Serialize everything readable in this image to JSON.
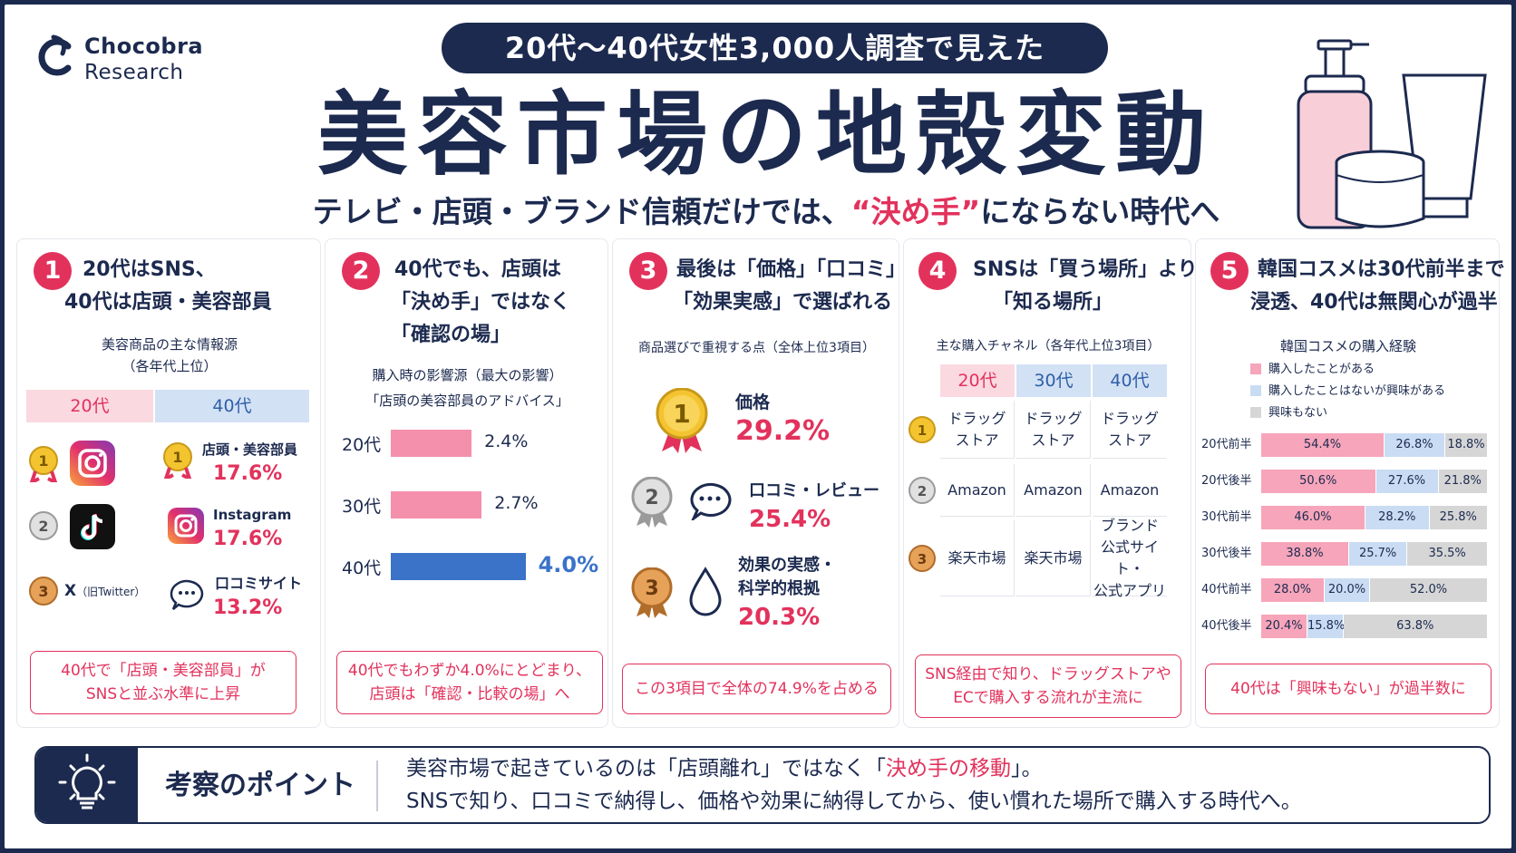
{
  "header": {
    "brand": "Chocobra",
    "brand_sub": "Research",
    "banner": "20代〜40代女性3,000人調査で見えた",
    "title": "美容市場の地殻変動",
    "subtitle_a": "テレビ・店頭・ブランド信頼だけでは、",
    "subtitle_b": "“決め手”",
    "subtitle_c": "にならない時代へ"
  },
  "colors": {
    "navy": "#1c2a4f",
    "pink": "#e2325c",
    "bar_pink": "#f490ac",
    "bar_blue": "#3a73c8",
    "seg_pink": "#f6a5ba",
    "seg_blue": "#c9dcf3",
    "seg_gray": "#d6d6d6"
  },
  "panel1": {
    "num": "1",
    "title_l1": "20代はSNS、",
    "title_l2": "40代は店頭・美容部員",
    "caption_l1": "美容商品の主な情報源",
    "caption_l2": "（各年代上位）",
    "col1": "20代",
    "col2": "40代",
    "rank_20": [
      {
        "rank": "1",
        "icon": "instagram-icon"
      },
      {
        "rank": "2",
        "icon": "tiktok-icon"
      },
      {
        "rank": "3",
        "label": "X",
        "label_sub": "（旧Twitter）"
      }
    ],
    "rank_40": [
      {
        "rank": "1",
        "label": "店頭・美容部員",
        "value": "17.6%"
      },
      {
        "rank": "2",
        "label": "Instagram",
        "value": "17.6%"
      },
      {
        "rank": "3",
        "label": "口コミサイト",
        "value": "13.2%"
      }
    ],
    "footer_l1": "40代で「店頭・美容部員」が",
    "footer_l2": "SNSと並ぶ水準に上昇"
  },
  "panel2": {
    "num": "2",
    "title_l1": "40代でも、店頭は",
    "title_l2": "「決め手」ではなく",
    "title_l3": "「確認の場」",
    "caption_l1": "購入時の影響源（最大の影響）",
    "caption_l2": "「店頭の美容部員のアドバイス」",
    "footer_l1": "40代でもわずか4.0%にとどまり、",
    "footer_l2": "店頭は「確認・比較の場」へ"
  },
  "panel3": {
    "num": "3",
    "title_l1": "最後は「価格」「口コミ」",
    "title_l2": "「効果実感」で選ばれる",
    "caption": "商品選びで重視する点（全体上位3項目）",
    "items": [
      {
        "rank": "1",
        "label": "価格",
        "value": "29.2%"
      },
      {
        "rank": "2",
        "label": "口コミ・レビュー",
        "value": "25.4%"
      },
      {
        "rank": "3",
        "label_l1": "効果の実感・",
        "label_l2": "科学的根拠",
        "value": "20.3%"
      }
    ],
    "footer": "この3項目で全体の74.9%を占める"
  },
  "panel4": {
    "num": "4",
    "title_l1": "SNSは「買う場所」より",
    "title_l2": "「知る場所」",
    "caption": "主な購入チャネル（各年代上位3項目）",
    "cols": [
      "20代",
      "30代",
      "40代"
    ],
    "r1": [
      "ドラッグ\nストア",
      "ドラッグ\nストア",
      "ドラッグ\nストア"
    ],
    "r2": [
      "Amazon",
      "Amazon",
      "Amazon"
    ],
    "r3": [
      "楽天市場",
      "楽天市場",
      "ブランド\n公式サイト・\n公式アプリ"
    ],
    "footer_l1": "SNS経由で知り、ドラッグストアや",
    "footer_l2": "ECで購入する流れが主流に"
  },
  "panel5": {
    "num": "5",
    "title_l1": "韓国コスメは30代前半まで",
    "title_l2": "浸透、40代は無関心が過半",
    "caption": "韓国コスメの購入経験",
    "legend": [
      "購入したことがある",
      "購入したことはないが興味がある",
      "興味もない"
    ],
    "footer": "40代は「興味もない」が過半数に"
  },
  "chart_data": [
    {
      "type": "bar",
      "categories": [
        "20代",
        "30代",
        "40代"
      ],
      "values": [
        2.4,
        2.7,
        4.0
      ],
      "value_labels": [
        "2.4%",
        "2.7%",
        "4.0%"
      ],
      "xlim": [
        0,
        7
      ]
    },
    {
      "type": "bar",
      "stacked": true,
      "orientation": "horizontal",
      "categories": [
        "20代前半",
        "20代後半",
        "30代前半",
        "30代後半",
        "40代前半",
        "40代後半"
      ],
      "series": [
        {
          "name": "購入したことがある",
          "values": [
            54.4,
            50.6,
            46.0,
            38.8,
            28.0,
            20.4
          ]
        },
        {
          "name": "購入したことはないが興味がある",
          "values": [
            26.8,
            27.6,
            28.2,
            25.7,
            20.0,
            15.8
          ]
        },
        {
          "name": "興味もない",
          "values": [
            18.8,
            21.8,
            25.8,
            35.5,
            52.0,
            63.8
          ]
        }
      ]
    }
  ],
  "insight": {
    "title": "考察のポイント",
    "l1a": "美容市場で起きているのは「店頭離れ」ではなく「",
    "l1b": "決め手の移動",
    "l1c": "」。",
    "l2": "SNSで知り、口コミで納得し、価格や効果に納得してから、使い慣れた場所で購入する時代へ。"
  }
}
